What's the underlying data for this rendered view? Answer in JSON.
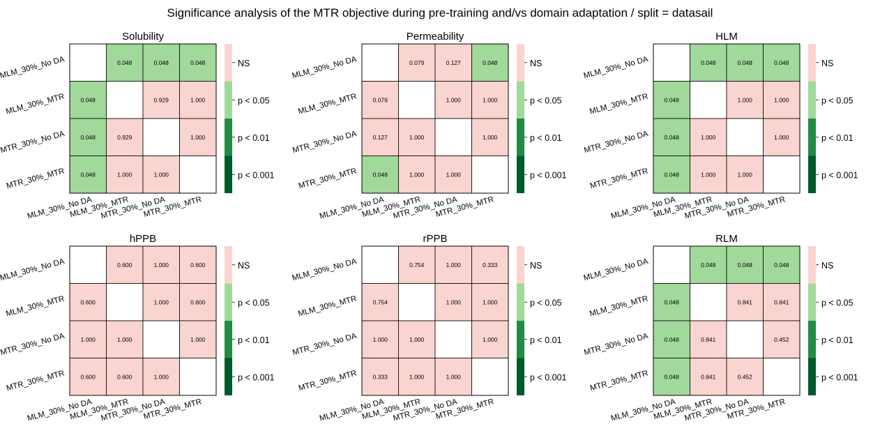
{
  "title": "Significance analysis of the MTR objective during pre-training and/vs domain adaptation / split = datasail",
  "colors": {
    "ns": "#fad4d0",
    "p05": "#a1d99b",
    "p01": "#238b45",
    "p001": "#00592a",
    "diag": "#ffffff",
    "border": "#000000"
  },
  "legend_labels": [
    "NS",
    "p < 0.05",
    "p < 0.01",
    "p < 0.001"
  ],
  "chart_data": [
    {
      "type": "heatmap",
      "title": "Solubility",
      "row_labels": [
        "MLM_30%_No DA",
        "MLM_30%_MTR",
        "MTR_30%_No DA",
        "MTR_30%_MTR"
      ],
      "col_labels": [
        "MLM_30%_No DA",
        "MLM_30%_MTR",
        "MTR_30%_No DA",
        "MTR_30%_MTR"
      ],
      "values": [
        [
          null,
          "0.048",
          "0.048",
          "0.048"
        ],
        [
          "0.048",
          null,
          "0.929",
          "1.000"
        ],
        [
          "0.048",
          "0.929",
          null,
          "1.000"
        ],
        [
          "0.048",
          "1.000",
          "1.000",
          null
        ]
      ]
    },
    {
      "type": "heatmap",
      "title": "Permeability",
      "row_labels": [
        "MLM_30%_No DA",
        "MLM_30%_MTR",
        "MTR_30%_No DA",
        "MTR_30%_MTR"
      ],
      "col_labels": [
        "MLM_30%_No DA",
        "MLM_30%_MTR",
        "MTR_30%_No DA",
        "MTR_30%_MTR"
      ],
      "values": [
        [
          null,
          "0.079",
          "0.127",
          "0.048"
        ],
        [
          "0.079",
          null,
          "1.000",
          "1.000"
        ],
        [
          "0.127",
          "1.000",
          null,
          "1.000"
        ],
        [
          "0.048",
          "1.000",
          "1.000",
          null
        ]
      ]
    },
    {
      "type": "heatmap",
      "title": "HLM",
      "row_labels": [
        "MLM_30%_No DA",
        "MLM_30%_MTR",
        "MTR_30%_No DA",
        "MTR_30%_MTR"
      ],
      "col_labels": [
        "MLM_30%_No DA",
        "MLM_30%_MTR",
        "MTR_30%_No DA",
        "MTR_30%_MTR"
      ],
      "values": [
        [
          null,
          "0.048",
          "0.048",
          "0.048"
        ],
        [
          "0.048",
          null,
          "1.000",
          "1.000"
        ],
        [
          "0.048",
          "1.000",
          null,
          "1.000"
        ],
        [
          "0.048",
          "1.000",
          "1.000",
          null
        ]
      ]
    },
    {
      "type": "heatmap",
      "title": "hPPB",
      "row_labels": [
        "MLM_30%_No DA",
        "MLM_30%_MTR",
        "MTR_30%_No DA",
        "MTR_30%_MTR"
      ],
      "col_labels": [
        "MLM_30%_No DA",
        "MLM_30%_MTR",
        "MTR_30%_No DA",
        "MTR_30%_MTR"
      ],
      "values": [
        [
          null,
          "0.600",
          "1.000",
          "0.600"
        ],
        [
          "0.600",
          null,
          "1.000",
          "0.600"
        ],
        [
          "1.000",
          "1.000",
          null,
          "1.000"
        ],
        [
          "0.600",
          "0.600",
          "1.000",
          null
        ]
      ]
    },
    {
      "type": "heatmap",
      "title": "rPPB",
      "row_labels": [
        "MLM_30%_No DA",
        "MLM_30%_MTR",
        "MTR_30%_No DA",
        "MTR_30%_MTR"
      ],
      "col_labels": [
        "MLM_30%_No DA",
        "MLM_30%_MTR",
        "MTR_30%_No DA",
        "MTR_30%_MTR"
      ],
      "values": [
        [
          null,
          "0.754",
          "1.000",
          "0.333"
        ],
        [
          "0.754",
          null,
          "1.000",
          "1.000"
        ],
        [
          "1.000",
          "1.000",
          null,
          "1.000"
        ],
        [
          "0.333",
          "1.000",
          "1.000",
          null
        ]
      ]
    },
    {
      "type": "heatmap",
      "title": "RLM",
      "row_labels": [
        "MLM_30%_No DA",
        "MLM_30%_MTR",
        "MTR_30%_No DA",
        "MTR_30%_MTR"
      ],
      "col_labels": [
        "MLM_30%_No DA",
        "MLM_30%_MTR",
        "MTR_30%_No DA",
        "MTR_30%_MTR"
      ],
      "values": [
        [
          null,
          "0.048",
          "0.048",
          "0.048"
        ],
        [
          "0.048",
          null,
          "0.841",
          "0.841"
        ],
        [
          "0.048",
          "0.841",
          null,
          "0.452"
        ],
        [
          "0.048",
          "0.841",
          "0.452",
          null
        ]
      ]
    }
  ]
}
